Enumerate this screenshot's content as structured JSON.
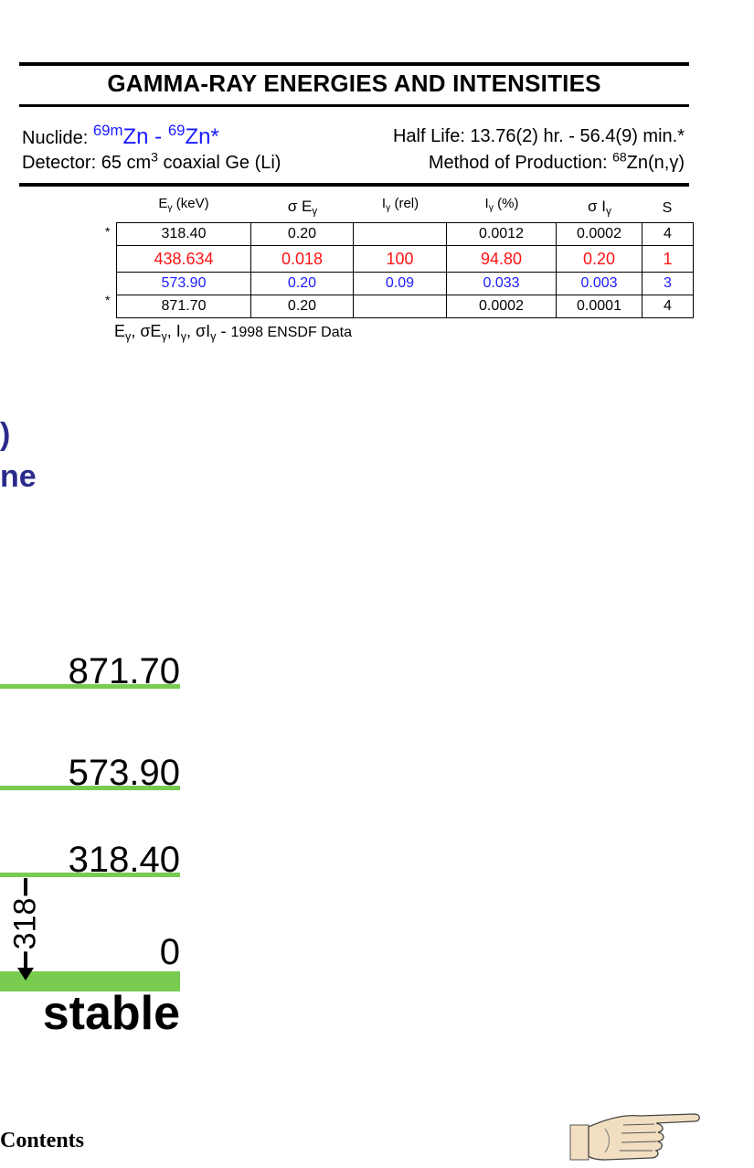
{
  "header": {
    "title": "GAMMA-RAY ENERGIES AND INTENSITIES",
    "nuclide_label": "Nuclide:",
    "nuclide_mass_1": "69m",
    "nuclide_elem_1": "Zn",
    "nuclide_sep": " - ",
    "nuclide_mass_2": "69",
    "nuclide_elem_2": "Zn*",
    "half_life": "Half Life: 13.76(2) hr. - 56.4(9) min.*",
    "detector_prefix": "Detector: 65 cm",
    "detector_exp": "3",
    "detector_suffix": " coaxial Ge (Li)",
    "production_prefix": "Method of Production: ",
    "production_mass": "68",
    "production_reaction": "Zn(n,γ)"
  },
  "table": {
    "headers": {
      "energy": "E",
      "energy_sub": "γ",
      "energy_unit": " (keV)",
      "sigma_energy": "σ E",
      "sigma_energy_sub": "γ",
      "intensity_rel": "I",
      "intensity_rel_sub": "γ",
      "intensity_rel_unit": " (rel)",
      "intensity_pct": "I",
      "intensity_pct_sub": "γ",
      "intensity_pct_unit": " (%)",
      "sigma_intensity": "σ I",
      "sigma_intensity_sub": "γ",
      "s": "S"
    },
    "rows": [
      {
        "marker": "*",
        "energy": "318.40",
        "sigma_energy": "0.20",
        "intensity_rel": "",
        "intensity_pct": "0.0012",
        "sigma_intensity": "0.0002",
        "s": "4",
        "color": "#000000"
      },
      {
        "marker": "",
        "energy": "438.634",
        "sigma_energy": "0.018",
        "intensity_rel": "100",
        "intensity_pct": "94.80",
        "sigma_intensity": "0.20",
        "s": "1",
        "color": "#ff1414"
      },
      {
        "marker": "",
        "energy": "573.90",
        "sigma_energy": "0.20",
        "intensity_rel": "0.09",
        "intensity_pct": "0.033",
        "sigma_intensity": "0.003",
        "s": "3",
        "color": "#1a1aff"
      },
      {
        "marker": "*",
        "energy": "871.70",
        "sigma_energy": "0.20",
        "intensity_rel": "",
        "intensity_pct": "0.0002",
        "sigma_intensity": "0.0001",
        "s": "4",
        "color": "#000000"
      }
    ],
    "source_note": "1998 ENSDF Data"
  },
  "partial_text": {
    "line1": ")",
    "line2": "ne"
  },
  "level_scheme": {
    "levels": [
      "871.70",
      "573.90",
      "318.40",
      "0"
    ],
    "ground_label": "stable",
    "transition_label": "318"
  },
  "footer": {
    "contents_label": "Contents",
    "next_icon": "pointing-hand-icon"
  }
}
